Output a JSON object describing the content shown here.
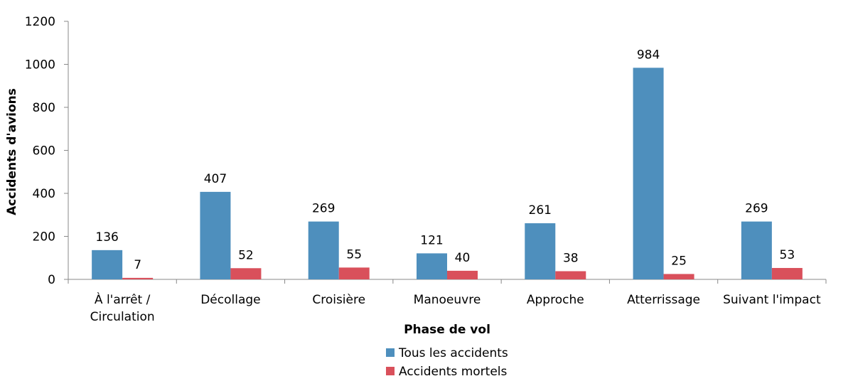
{
  "chart_data": {
    "type": "bar",
    "xlabel": "Phase de vol",
    "ylabel": "Accidents d'avions",
    "ylim": [
      0,
      1200
    ],
    "yticks": [
      0,
      200,
      400,
      600,
      800,
      1000,
      1200
    ],
    "categories": [
      [
        "À l'arrêt /",
        "Circulation"
      ],
      [
        "Décollage"
      ],
      [
        "Croisière"
      ],
      [
        "Manoeuvre"
      ],
      [
        "Approche"
      ],
      [
        "Atterrissage"
      ],
      [
        "Suivant l'impact"
      ]
    ],
    "series": [
      {
        "name": "Tous les accidents",
        "color": "#4e8fbd",
        "values": [
          136,
          407,
          269,
          121,
          261,
          984,
          269
        ]
      },
      {
        "name": "Accidents mortels",
        "color": "#d9505b",
        "values": [
          7,
          52,
          55,
          40,
          38,
          25,
          53
        ]
      }
    ],
    "grid": false,
    "legend_position": "bottom-center"
  }
}
